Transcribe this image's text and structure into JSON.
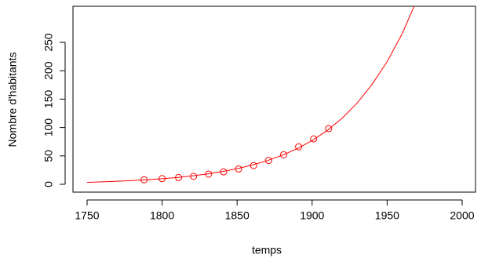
{
  "chart_data": {
    "type": "scatter",
    "x_label": "temps",
    "y_label": "Nombre d'habitants",
    "xlim": [
      1740.6,
      2008.9
    ],
    "ylim": [
      -13.8,
      313.5
    ],
    "xticks": [
      1750,
      1800,
      1850,
      1900,
      1950,
      2000
    ],
    "yticks": [
      0,
      50,
      100,
      150,
      200,
      250
    ],
    "color": "#ff0000",
    "points": {
      "x": [
        1788,
        1800,
        1811,
        1821,
        1831,
        1841,
        1851,
        1861,
        1871,
        1881,
        1891,
        1901,
        1911
      ],
      "values": [
        8,
        10,
        12,
        14,
        18,
        22,
        27,
        33,
        42,
        52,
        66,
        80,
        98
      ]
    },
    "curve": {
      "x": [
        1750,
        1760,
        1770,
        1780,
        1790,
        1800,
        1810,
        1820,
        1830,
        1840,
        1850,
        1860,
        1870,
        1880,
        1890,
        1900,
        1910,
        1920,
        1930,
        1940,
        1950,
        1960,
        1970
      ],
      "values": [
        3.5,
        4.3,
        5.3,
        6.5,
        8.0,
        9.8,
        12.0,
        14.8,
        18.2,
        22.4,
        27.5,
        33.8,
        41.5,
        51.0,
        62.7,
        77.1,
        94.7,
        116.4,
        143,
        176,
        216,
        265,
        326
      ]
    }
  }
}
